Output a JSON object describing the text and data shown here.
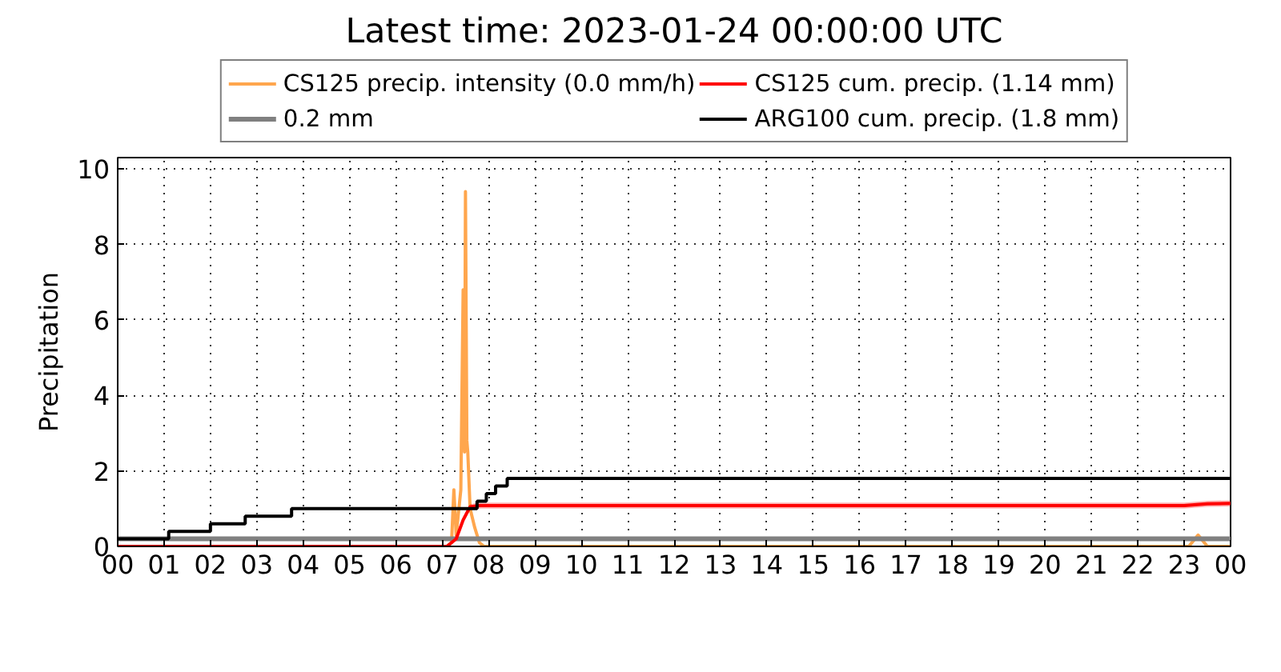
{
  "chart_data": {
    "type": "line",
    "title": "Latest time: 2023-01-24 00:00:00 UTC",
    "ylabel": "Precipitation",
    "xlim": [
      0,
      24
    ],
    "ylim": [
      0,
      10.3
    ],
    "xticks": [
      {
        "value": 0,
        "label": "00"
      },
      {
        "value": 1,
        "label": "01"
      },
      {
        "value": 2,
        "label": "02"
      },
      {
        "value": 3,
        "label": "03"
      },
      {
        "value": 4,
        "label": "04"
      },
      {
        "value": 5,
        "label": "05"
      },
      {
        "value": 6,
        "label": "06"
      },
      {
        "value": 7,
        "label": "07"
      },
      {
        "value": 8,
        "label": "08"
      },
      {
        "value": 9,
        "label": "09"
      },
      {
        "value": 10,
        "label": "10"
      },
      {
        "value": 11,
        "label": "11"
      },
      {
        "value": 12,
        "label": "12"
      },
      {
        "value": 13,
        "label": "13"
      },
      {
        "value": 14,
        "label": "14"
      },
      {
        "value": 15,
        "label": "15"
      },
      {
        "value": 16,
        "label": "16"
      },
      {
        "value": 17,
        "label": "17"
      },
      {
        "value": 18,
        "label": "18"
      },
      {
        "value": 19,
        "label": "19"
      },
      {
        "value": 20,
        "label": "20"
      },
      {
        "value": 21,
        "label": "21"
      },
      {
        "value": 22,
        "label": "22"
      },
      {
        "value": 23,
        "label": "23"
      },
      {
        "value": 24,
        "label": "00"
      }
    ],
    "yticks": [
      0,
      2,
      4,
      6,
      8,
      10
    ],
    "grid": true,
    "legend": "top",
    "series": [
      {
        "name": "CS125 precip. intensity (0.0 mm/h)",
        "color": "#ffa64d",
        "x": [
          0,
          7.1,
          7.2,
          7.25,
          7.3,
          7.4,
          7.45,
          7.48,
          7.5,
          7.53,
          7.55,
          7.6,
          7.7,
          7.8,
          7.9,
          23.1,
          23.3,
          23.5,
          24
        ],
        "values": [
          0,
          0,
          0.1,
          1.5,
          0.3,
          1.5,
          6.8,
          2.5,
          9.4,
          2.8,
          2.5,
          1,
          0.5,
          0.1,
          0,
          0,
          0.3,
          0,
          0
        ]
      },
      {
        "name": "0.2 mm",
        "color": "#808080",
        "x": [
          0,
          24
        ],
        "values": [
          0.2,
          0.2
        ]
      },
      {
        "name": "CS125 cum. precip. (1.14 mm)",
        "color": "#ff0000",
        "x": [
          0,
          7.1,
          7.3,
          7.45,
          7.6,
          7.8,
          23,
          23.5,
          24
        ],
        "values": [
          0,
          0,
          0.2,
          0.7,
          1.05,
          1.08,
          1.08,
          1.13,
          1.14
        ],
        "lower": [
          0,
          0,
          0.15,
          0.62,
          0.98,
          1.0,
          1.0,
          1.05,
          1.06
        ],
        "upper": [
          0,
          0,
          0.25,
          0.78,
          1.12,
          1.16,
          1.16,
          1.21,
          1.22
        ]
      },
      {
        "name": "ARG100 cum. precip. (1.8 mm)",
        "color": "#000000",
        "type": "step",
        "x": [
          0,
          1.1,
          2.0,
          2.75,
          3.75,
          7.75,
          7.95,
          8.15,
          8.4,
          24
        ],
        "values": [
          0.2,
          0.4,
          0.6,
          0.8,
          1.0,
          1.2,
          1.4,
          1.6,
          1.8,
          1.8
        ]
      }
    ]
  }
}
